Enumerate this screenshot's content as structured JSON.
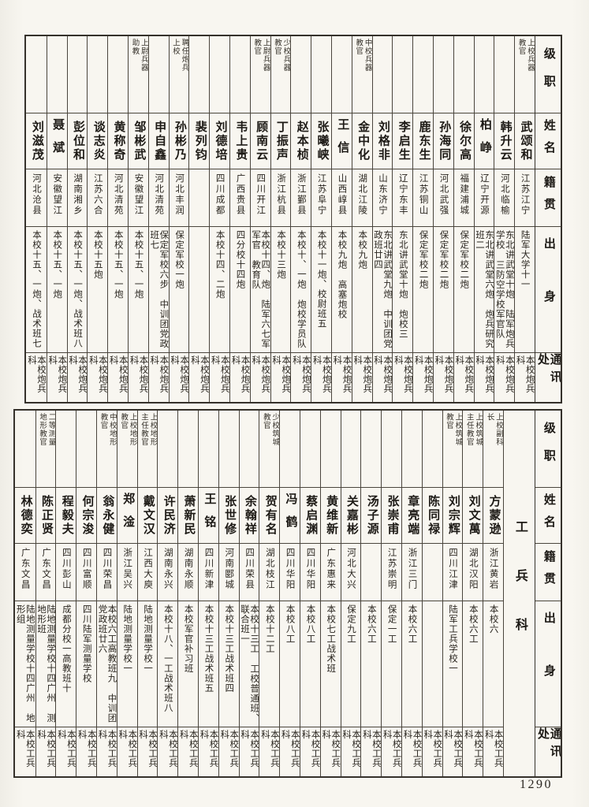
{
  "page": {
    "number": "1290"
  },
  "tables": [
    {
      "section_label": "",
      "headers": [
        "级职",
        "姓名",
        "籍贯",
        "出身",
        "通讯处"
      ],
      "columns": [
        {
          "rank": "上校兵器教官",
          "name": "武颂和",
          "place": "江苏江宁",
          "origin": "陆军大学十一",
          "contact": "本校炮兵科"
        },
        {
          "rank": "",
          "name": "韩升云",
          "place": "河北临榆",
          "origin": "东北讲武堂十炮 陆军炮兵学校 三防空学校军官队",
          "contact": "本校炮兵科"
        },
        {
          "rank": "",
          "name": "柏峥",
          "place": "辽宁开源",
          "origin": "东北讲武堂六炮 炮兵研究班二",
          "contact": "本校炮兵科"
        },
        {
          "rank": "",
          "name": "徐尔高",
          "place": "福建浦城",
          "origin": "保定军校二炮",
          "contact": "本校炮兵科"
        },
        {
          "rank": "",
          "name": "孙海同",
          "place": "河北武强",
          "origin": "保定军校二炮",
          "contact": "本校炮兵科"
        },
        {
          "rank": "",
          "name": "鹿东生",
          "place": "江苏铜山",
          "origin": "保定军校二炮",
          "contact": "本校炮兵科"
        },
        {
          "rank": "",
          "name": "李启生",
          "place": "辽宁东丰",
          "origin": "东北讲武堂十炮 炮校三",
          "contact": "本校炮兵科"
        },
        {
          "rank": "",
          "name": "刘格非",
          "place": "山东济宁",
          "origin": "东北讲武堂九炮 中训团党政班廿四",
          "contact": "本校炮兵科"
        },
        {
          "rank": "中校兵器教官",
          "name": "金中化",
          "place": "湖北江陵",
          "origin": "本校九炮",
          "contact": "本校炮兵科"
        },
        {
          "rank": "",
          "name": "王信",
          "place": "山西崞县",
          "origin": "本校九炮 高塞炮校",
          "contact": "本校炮兵科"
        },
        {
          "rank": "",
          "name": "张曦峡",
          "place": "江苏阜宁",
          "origin": "本校十一炮、校尉班五",
          "contact": "本校炮兵科"
        },
        {
          "rank": "",
          "name": "赵本桢",
          "place": "浙江鄞县",
          "origin": "本校十、一炮 炮校学员队",
          "contact": "本校炮兵科"
        },
        {
          "rank": "少校兵器教官",
          "name": "丁振声",
          "place": "浙江杭县",
          "origin": "本校十三炮",
          "contact": "本校炮兵科"
        },
        {
          "rank": "上尉兵器教官",
          "name": "顾南云",
          "place": "四川开江",
          "origin": "本校十四、炮 陆军六七军军官 教育队",
          "contact": "本校炮兵科"
        },
        {
          "rank": "",
          "name": "韦上贵",
          "place": "广西贵县",
          "origin": "四分校十四炮",
          "contact": "本校炮兵科"
        },
        {
          "rank": "",
          "name": "刘德培",
          "place": "四川成都",
          "origin": "本校十四、二炮",
          "contact": "本校炮兵科"
        },
        {
          "rank": "",
          "name": "裴列钧",
          "place": "",
          "origin": "",
          "contact": "本校炮兵科"
        },
        {
          "rank": "聘任炮兵上校",
          "name": "孙彬乃",
          "place": "河北丰润",
          "origin": "保定军校一炮",
          "contact": "本校炮兵科"
        },
        {
          "rank": "",
          "name": "申自鑫",
          "place": "河北清苑",
          "origin": "保定军校六步 中训团党政班七",
          "contact": "本校炮兵科"
        },
        {
          "rank": "上尉兵器助教",
          "name": "邹彬武",
          "place": "安徽望江",
          "origin": "本校十五、一炮",
          "contact": "本校炮兵科"
        },
        {
          "rank": "",
          "name": "黄称奇",
          "place": "河北清苑",
          "origin": "本校十五、一炮",
          "contact": "本校炮兵科"
        },
        {
          "rank": "",
          "name": "谈志炎",
          "place": "江苏六合",
          "origin": "本校十五炮",
          "contact": "本校炮兵科"
        },
        {
          "rank": "",
          "name": "彭位和",
          "place": "湖南湘乡",
          "origin": "本校十五、一炮、战术班八",
          "contact": "本校炮兵科"
        },
        {
          "rank": "",
          "name": "聂斌",
          "place": "安徽望江",
          "origin": "本校十五、一炮",
          "contact": "本校炮兵科"
        },
        {
          "rank": "",
          "name": "刘滋茂",
          "place": "河北沧县",
          "origin": "本校十五、一炮、战术班七",
          "contact": "本校炮兵科"
        }
      ]
    },
    {
      "section_label": "工兵科",
      "headers": [
        "级职",
        "姓名",
        "籍贯",
        "出身",
        "通讯处"
      ],
      "columns": [
        {
          "rank": "上校副科长",
          "name": "方蒙逊",
          "place": "浙江黄岩",
          "origin": "本校六",
          "contact": "本校工兵科"
        },
        {
          "rank": "上校筑城主任教官",
          "name": "刘文萬",
          "place": "湖北汉阳",
          "origin": "本校六工",
          "contact": "本校工兵科"
        },
        {
          "rank": "上校筑城教官",
          "name": "刘宗辉",
          "place": "四川江津",
          "origin": "陆军工兵学校一",
          "contact": "本校工兵科"
        },
        {
          "rank": "",
          "name": "陈同禄",
          "place": "",
          "origin": "",
          "contact": "本校工兵科"
        },
        {
          "rank": "",
          "name": "章亮端",
          "place": "浙江三门",
          "origin": "本校六工",
          "contact": "本校工兵科"
        },
        {
          "rank": "",
          "name": "张崇甫",
          "place": "江苏崇明",
          "origin": "保定一工",
          "contact": "本校工兵科"
        },
        {
          "rank": "",
          "name": "汤子源",
          "place": "",
          "origin": "本校六工",
          "contact": "本校工兵科"
        },
        {
          "rank": "",
          "name": "关嘉彬",
          "place": "河北大兴",
          "origin": "保定九工",
          "contact": "本校工兵科"
        },
        {
          "rank": "",
          "name": "黄维新",
          "place": "广东惠来",
          "origin": "本校七工战术班",
          "contact": "本校工兵科"
        },
        {
          "rank": "",
          "name": "蔡启渊",
          "place": "四川华阳",
          "origin": "本校八工",
          "contact": "本校工兵科"
        },
        {
          "rank": "",
          "name": "冯鹤",
          "place": "四川华阳",
          "origin": "本校八工",
          "contact": "本校工兵科"
        },
        {
          "rank": "少校筑城教官",
          "name": "贺有名",
          "place": "湖北枝江",
          "origin": "本校十二工",
          "contact": "本校工兵科"
        },
        {
          "rank": "",
          "name": "余翰祥",
          "place": "四川荣县",
          "origin": "本校十三工 工校普通班、联合班一",
          "contact": "本校工兵科"
        },
        {
          "rank": "",
          "name": "张世修",
          "place": "河南郾城",
          "origin": "本校十三工战术班四",
          "contact": "本校工兵科"
        },
        {
          "rank": "",
          "name": "王铭",
          "place": "四川新津",
          "origin": "本校十三工战术班五",
          "contact": "本校工兵科"
        },
        {
          "rank": "",
          "name": "萧新民",
          "place": "湖南永顺",
          "origin": "本校军官补习班",
          "contact": "本校工兵科"
        },
        {
          "rank": "",
          "name": "许民济",
          "place": "湖南永兴",
          "origin": "本校十八、一工战术班八",
          "contact": "本校工兵科"
        },
        {
          "rank": "上校地形主任教官",
          "name": "戴文汉",
          "place": "江西大庾",
          "origin": "陆地测量学校一",
          "contact": "本校工兵科"
        },
        {
          "rank": "上校地形教官",
          "name": "郑淦",
          "place": "浙江吴兴",
          "origin": "陆地测量学校一",
          "contact": "本校工兵科"
        },
        {
          "rank": "中校地形教官",
          "name": "翁永健",
          "place": "四川荣昌",
          "origin": "本校六工高教班九 中训团党政班廿六",
          "contact": "本校工兵科"
        },
        {
          "rank": "",
          "name": "何宗浚",
          "place": "四川富顺",
          "origin": "四川陆军测量学校",
          "contact": "本校工兵科"
        },
        {
          "rank": "",
          "name": "程毅夫",
          "place": "四川彭山",
          "origin": "成都分校一高教班十",
          "contact": "本校工兵科"
        },
        {
          "rank": "二等测量地形教官",
          "name": "陈正贤",
          "place": "广东文昌",
          "origin": "陆地测量学校十四广州 测地形班",
          "contact": "本校工兵科"
        },
        {
          "rank": "",
          "name": "林德奕",
          "place": "广东文昌",
          "origin": "陆地测量学校十四广州 地形组",
          "contact": "本校工兵科"
        }
      ]
    }
  ]
}
